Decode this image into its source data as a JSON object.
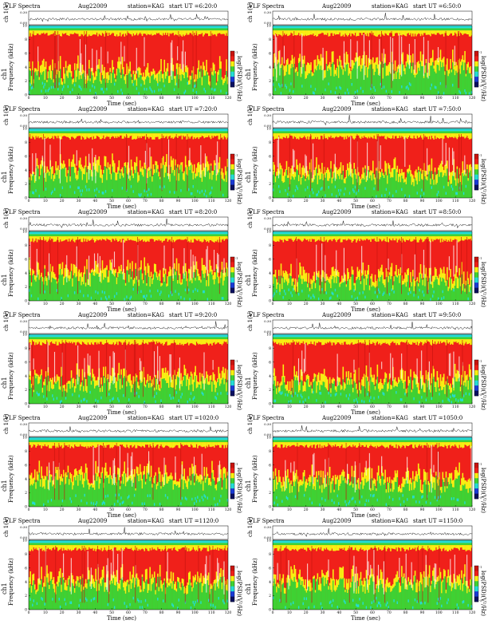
{
  "header": {
    "product": "VLF Spectra",
    "month": "Aug",
    "year_prefix": "2",
    "year_suffix": "2009",
    "station": "station=KAG",
    "start_label": "start UT ="
  },
  "axis_labels": {
    "trace_ylabel": "ch 1(V)",
    "spec_ylabel_channel": "ch1",
    "spec_ylabel_freq": "Frequency (kHz)",
    "xlabel": "Time (sec)",
    "cbar_label": "log(PSD)(V²/Hz)"
  },
  "colors": {
    "bg_red": "#f0201a",
    "red_dark": "#c8140f",
    "yellow": "#f8ef12",
    "green": "#3ed233",
    "cyan": "#25dcd6",
    "blue": "#1a3bd6",
    "navy": "#0a1060",
    "trace": "#000000"
  },
  "chart_data": [
    {
      "type": "heatmap",
      "start_ut": "6:20:0",
      "xlim": [
        0,
        120
      ],
      "ylim": [
        0,
        10
      ],
      "trace_ylim": [
        0.0,
        0.3
      ],
      "trace_ticks": [
        "0.30",
        "0.00"
      ],
      "seed": 1
    },
    {
      "type": "heatmap",
      "start_ut": "6:50:0",
      "xlim": [
        0,
        120
      ],
      "ylim": [
        0,
        10
      ],
      "trace_ylim": [
        0.0,
        0.3
      ],
      "trace_ticks": [
        "0.30",
        "0.00"
      ],
      "seed": 2
    },
    {
      "type": "heatmap",
      "start_ut": "7:20:0",
      "xlim": [
        0,
        120
      ],
      "ylim": [
        0,
        10
      ],
      "trace_ylim": [
        0.0,
        0.3
      ],
      "trace_ticks": [
        "0.30",
        "0.00"
      ],
      "seed": 3
    },
    {
      "type": "heatmap",
      "start_ut": "7:50:0",
      "xlim": [
        0,
        120
      ],
      "ylim": [
        0,
        10
      ],
      "trace_ylim": [
        0.0,
        0.3
      ],
      "trace_ticks": [
        "0.30",
        "0.00"
      ],
      "seed": 4
    },
    {
      "type": "heatmap",
      "start_ut": "8:20:0",
      "xlim": [
        0,
        120
      ],
      "ylim": [
        0,
        10
      ],
      "trace_ylim": [
        0.0,
        0.3
      ],
      "trace_ticks": [
        "0.30",
        "0.00"
      ],
      "seed": 5
    },
    {
      "type": "heatmap",
      "start_ut": "8:50:0",
      "xlim": [
        0,
        120
      ],
      "ylim": [
        0,
        10
      ],
      "trace_ylim": [
        0.0,
        0.3
      ],
      "trace_ticks": [
        "0.30",
        "0.00"
      ],
      "seed": 6
    },
    {
      "type": "heatmap",
      "start_ut": "9:20:0",
      "xlim": [
        0,
        120
      ],
      "ylim": [
        0,
        10
      ],
      "trace_ylim": [
        0.0,
        0.3
      ],
      "trace_ticks": [
        "0.30",
        "0.00"
      ],
      "seed": 7
    },
    {
      "type": "heatmap",
      "start_ut": "9:50:0",
      "xlim": [
        0,
        120
      ],
      "ylim": [
        0,
        10
      ],
      "trace_ylim": [
        0.0,
        0.3
      ],
      "trace_ticks": [
        "0.30",
        "0.00"
      ],
      "seed": 8
    },
    {
      "type": "heatmap",
      "start_ut": "1020:0",
      "xlim": [
        0,
        120
      ],
      "ylim": [
        0,
        10
      ],
      "trace_ylim": [
        0.0,
        0.3
      ],
      "trace_ticks": [
        "0.30",
        "0.00"
      ],
      "seed": 9
    },
    {
      "type": "heatmap",
      "start_ut": "1050:0",
      "xlim": [
        0,
        120
      ],
      "ylim": [
        0,
        10
      ],
      "trace_ylim": [
        0.0,
        0.3
      ],
      "trace_ticks": [
        "0.30",
        "0.00"
      ],
      "seed": 10
    },
    {
      "type": "heatmap",
      "start_ut": "1120:0",
      "xlim": [
        0,
        120
      ],
      "ylim": [
        0,
        10
      ],
      "trace_ylim": [
        0.0,
        0.3
      ],
      "trace_ticks": [
        "0.30",
        "0.00"
      ],
      "seed": 11
    },
    {
      "type": "heatmap",
      "start_ut": "1150:0",
      "xlim": [
        0,
        120
      ],
      "ylim": [
        0,
        10
      ],
      "trace_ylim": [
        0.0,
        0.3
      ],
      "trace_ticks": [
        "0.30",
        "0.00"
      ],
      "seed": 12
    }
  ],
  "x_ticks": [
    0,
    10,
    20,
    30,
    40,
    50,
    60,
    70,
    80,
    90,
    100,
    110,
    120
  ],
  "y_ticks": [
    0,
    2,
    4,
    6,
    8,
    10
  ],
  "cbar_ticks": [
    "-1",
    "-5"
  ]
}
